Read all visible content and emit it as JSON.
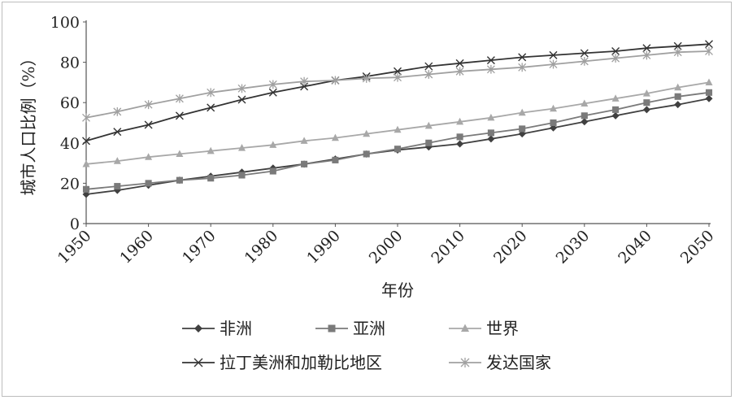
{
  "chart_data": {
    "type": "line",
    "title": "",
    "xlabel": "年份",
    "ylabel": "城市人口比例（%）",
    "xlim": [
      1950,
      2050
    ],
    "ylim": [
      0,
      100
    ],
    "yticks": [
      0,
      20,
      40,
      60,
      80,
      100
    ],
    "xticks": [
      1950,
      1960,
      1970,
      1980,
      1990,
      2000,
      2010,
      2020,
      2030,
      2040,
      2050
    ],
    "grid": "none",
    "legend_position": "bottom",
    "x": [
      1950,
      1955,
      1960,
      1965,
      1970,
      1975,
      1980,
      1985,
      1990,
      1995,
      2000,
      2005,
      2010,
      2015,
      2020,
      2025,
      2030,
      2035,
      2040,
      2045,
      2050
    ],
    "series": [
      {
        "name": "非洲",
        "marker": "diamond",
        "color": "#404040",
        "values": [
          14.5,
          16.5,
          19,
          21.5,
          23.5,
          25.5,
          27.5,
          29.5,
          32,
          34.5,
          36.5,
          38,
          39.5,
          42,
          44.5,
          47.5,
          50.5,
          53.5,
          56.5,
          59,
          62
        ]
      },
      {
        "name": "亚洲",
        "marker": "square",
        "color": "#7a7a7a",
        "values": [
          17,
          18.5,
          20,
          21.5,
          22.5,
          24,
          26,
          29.5,
          31.5,
          34.5,
          37,
          40,
          43,
          45,
          47,
          50,
          53.5,
          56.5,
          60,
          63,
          65
        ]
      },
      {
        "name": "世界",
        "marker": "triangle",
        "color": "#a8a8a8",
        "values": [
          29.5,
          31,
          33,
          34.5,
          36,
          37.5,
          39,
          41,
          42.5,
          44.5,
          46.5,
          48.5,
          50.5,
          52.5,
          55,
          57,
          59.5,
          62,
          64.5,
          67.5,
          70
        ]
      },
      {
        "name": "拉丁美洲和加勒比地区",
        "marker": "x",
        "color": "#333333",
        "values": [
          41,
          45.5,
          49,
          53.5,
          57.5,
          61.5,
          65,
          68,
          71,
          73,
          75.5,
          78,
          79.5,
          81,
          82.5,
          83.5,
          84.5,
          85.5,
          87,
          88,
          89
        ]
      },
      {
        "name": "发达国家",
        "marker": "star",
        "color": "#a0a0a0",
        "values": [
          52.5,
          55.5,
          59,
          62,
          65,
          67,
          69,
          70.5,
          71,
          72,
          72.5,
          74,
          75.5,
          76.5,
          77.5,
          79,
          80.5,
          82,
          83.5,
          85,
          85.5
        ]
      }
    ]
  }
}
